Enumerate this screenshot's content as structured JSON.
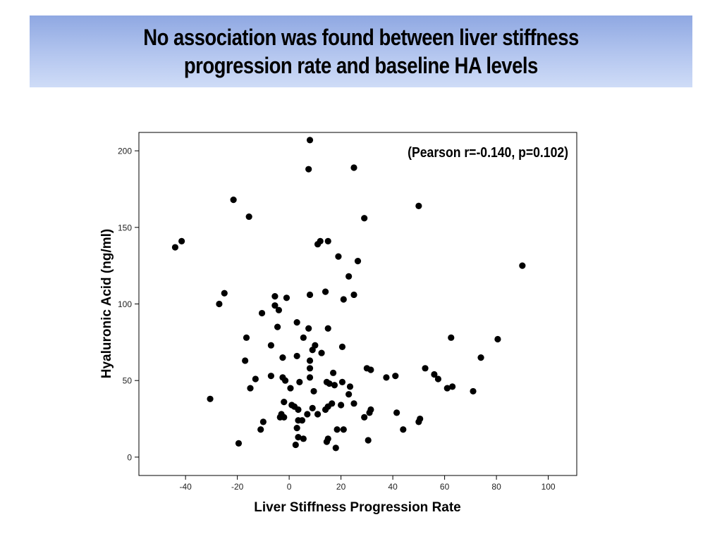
{
  "slide": {
    "title_lines": [
      "No association was found between liver stiffness",
      "progression rate and baseline HA levels"
    ]
  },
  "chart_data": {
    "type": "scatter",
    "annotation": "(Pearson r=-0.140, p=0.102)",
    "xlabel": "Liver Stiffness Progression Rate",
    "ylabel": "Hyaluronic Acid (ng/ml)",
    "xlim": [
      -58,
      111
    ],
    "ylim": [
      -12,
      212
    ],
    "xticks": [
      -40,
      -20,
      0,
      20,
      40,
      60,
      80,
      100
    ],
    "yticks": [
      0,
      50,
      100,
      150,
      200
    ],
    "grid": false,
    "legend": "none",
    "marker_color": "#000000",
    "points": [
      {
        "x": 8,
        "y": 207
      },
      {
        "x": 7.5,
        "y": 188
      },
      {
        "x": 25,
        "y": 189
      },
      {
        "x": -21.5,
        "y": 168
      },
      {
        "x": -15.5,
        "y": 157
      },
      {
        "x": 29,
        "y": 156
      },
      {
        "x": 50,
        "y": 164
      },
      {
        "x": -44,
        "y": 137
      },
      {
        "x": -41.5,
        "y": 141
      },
      {
        "x": 12,
        "y": 141
      },
      {
        "x": 15,
        "y": 141
      },
      {
        "x": 11,
        "y": 139
      },
      {
        "x": 19,
        "y": 131
      },
      {
        "x": 26.5,
        "y": 128
      },
      {
        "x": 23,
        "y": 118
      },
      {
        "x": 90,
        "y": 125
      },
      {
        "x": -25,
        "y": 107
      },
      {
        "x": -27,
        "y": 100
      },
      {
        "x": 8,
        "y": 106
      },
      {
        "x": 14,
        "y": 108
      },
      {
        "x": 21,
        "y": 103
      },
      {
        "x": 25,
        "y": 106
      },
      {
        "x": -5.5,
        "y": 105
      },
      {
        "x": -1,
        "y": 104
      },
      {
        "x": -5.5,
        "y": 99
      },
      {
        "x": -4,
        "y": 96
      },
      {
        "x": -10.5,
        "y": 94
      },
      {
        "x": 3,
        "y": 88
      },
      {
        "x": 7.5,
        "y": 84
      },
      {
        "x": 15,
        "y": 84
      },
      {
        "x": -4.5,
        "y": 85
      },
      {
        "x": -16.5,
        "y": 78
      },
      {
        "x": 5.5,
        "y": 78
      },
      {
        "x": 62.5,
        "y": 78
      },
      {
        "x": 80.5,
        "y": 77
      },
      {
        "x": -7,
        "y": 73
      },
      {
        "x": 10,
        "y": 73
      },
      {
        "x": 20.5,
        "y": 72
      },
      {
        "x": 9,
        "y": 70
      },
      {
        "x": 12.5,
        "y": 68
      },
      {
        "x": 3,
        "y": 66
      },
      {
        "x": -17,
        "y": 63
      },
      {
        "x": -2.5,
        "y": 65
      },
      {
        "x": 8,
        "y": 63
      },
      {
        "x": 74,
        "y": 65
      },
      {
        "x": 8,
        "y": 58
      },
      {
        "x": 30,
        "y": 58
      },
      {
        "x": 31.5,
        "y": 57
      },
      {
        "x": 52.5,
        "y": 58
      },
      {
        "x": 17,
        "y": 55
      },
      {
        "x": 56,
        "y": 54
      },
      {
        "x": -7,
        "y": 53
      },
      {
        "x": -2.5,
        "y": 52
      },
      {
        "x": 8,
        "y": 52
      },
      {
        "x": 37.5,
        "y": 52
      },
      {
        "x": 41,
        "y": 53
      },
      {
        "x": 57.5,
        "y": 51
      },
      {
        "x": -13,
        "y": 51
      },
      {
        "x": -1.5,
        "y": 50
      },
      {
        "x": 4,
        "y": 49
      },
      {
        "x": 14.5,
        "y": 49
      },
      {
        "x": 15.5,
        "y": 48
      },
      {
        "x": 20.5,
        "y": 49
      },
      {
        "x": 17.5,
        "y": 47
      },
      {
        "x": 23.5,
        "y": 46
      },
      {
        "x": 63,
        "y": 46
      },
      {
        "x": 61,
        "y": 45
      },
      {
        "x": 71,
        "y": 43
      },
      {
        "x": -15,
        "y": 45
      },
      {
        "x": 0.5,
        "y": 45
      },
      {
        "x": 9.5,
        "y": 43
      },
      {
        "x": 23,
        "y": 41
      },
      {
        "x": -30.5,
        "y": 38
      },
      {
        "x": -2,
        "y": 36
      },
      {
        "x": 1,
        "y": 34
      },
      {
        "x": 2,
        "y": 33
      },
      {
        "x": 3.5,
        "y": 31
      },
      {
        "x": 9,
        "y": 32
      },
      {
        "x": 14,
        "y": 31
      },
      {
        "x": 15,
        "y": 33
      },
      {
        "x": 16.5,
        "y": 35
      },
      {
        "x": 20,
        "y": 34
      },
      {
        "x": 25,
        "y": 35
      },
      {
        "x": 31.5,
        "y": 31
      },
      {
        "x": 31,
        "y": 29
      },
      {
        "x": 41.5,
        "y": 29
      },
      {
        "x": -3,
        "y": 28
      },
      {
        "x": 7,
        "y": 28
      },
      {
        "x": 11,
        "y": 28
      },
      {
        "x": 29,
        "y": 26
      },
      {
        "x": -3.5,
        "y": 26
      },
      {
        "x": -2,
        "y": 26
      },
      {
        "x": 3.5,
        "y": 24
      },
      {
        "x": 5,
        "y": 24
      },
      {
        "x": -10,
        "y": 23
      },
      {
        "x": 50.5,
        "y": 25
      },
      {
        "x": 50,
        "y": 23
      },
      {
        "x": -11,
        "y": 18
      },
      {
        "x": 3,
        "y": 19
      },
      {
        "x": 18.5,
        "y": 18
      },
      {
        "x": 21,
        "y": 18
      },
      {
        "x": 44,
        "y": 18
      },
      {
        "x": 3.5,
        "y": 13
      },
      {
        "x": 5.5,
        "y": 12
      },
      {
        "x": 15,
        "y": 12
      },
      {
        "x": 14.5,
        "y": 10
      },
      {
        "x": 30.5,
        "y": 11
      },
      {
        "x": -19.5,
        "y": 9
      },
      {
        "x": 2.5,
        "y": 8
      },
      {
        "x": 18,
        "y": 6
      }
    ]
  }
}
